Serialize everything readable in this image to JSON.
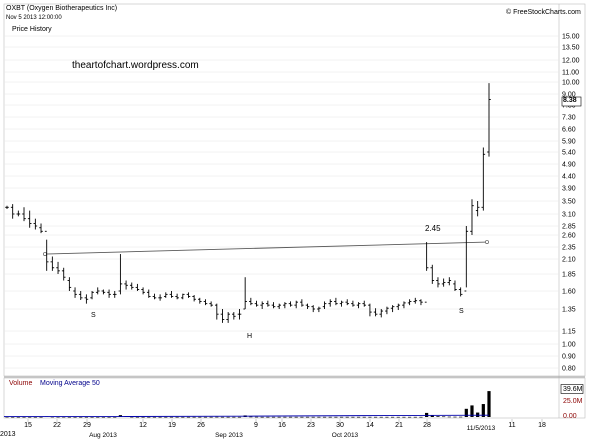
{
  "header": {
    "symbol_title": "OXBT (Oxygen Biotherapeutics Inc)",
    "date": "Nov 5 2013 12:00:00",
    "panel_label": "Price History",
    "watermark": "theartofchart.wordpress.com",
    "brand": "© FreeStockCharts.com"
  },
  "colors": {
    "price_bars": "#000000",
    "trendline": "#5a5a5a",
    "volume_label": "#8b0000",
    "ma_label": "#00008b",
    "volume_bars": "#000000",
    "ma_line": "#0000aa",
    "grid": "#e6e6e6"
  },
  "annotations": {
    "breakout_value": "2.45",
    "left_shoulder": "S",
    "head": "H",
    "right_shoulder": "S"
  },
  "chart_data": [
    {
      "type": "line",
      "title": "OXBT (Oxygen Biotherapeutics Inc)",
      "xlabel": "",
      "ylabel": "",
      "y_scale": "log",
      "ylim": [
        0.8,
        15.0
      ],
      "y_ticks": [
        15.0,
        13.5,
        12.0,
        11.0,
        10.0,
        9.0,
        7.8,
        7.3,
        6.6,
        5.9,
        5.4,
        4.9,
        4.4,
        3.9,
        3.5,
        3.1,
        2.85,
        2.6,
        2.35,
        2.1,
        1.85,
        1.6,
        1.35,
        1.15,
        1.0,
        0.9,
        0.8
      ],
      "x_tick_labels": [
        "15",
        "22",
        "29",
        "Aug 2013",
        "12",
        "19",
        "26",
        "Sep 2013",
        "9",
        "16",
        "23",
        "30",
        "Oct 2013",
        "14",
        "21",
        "28",
        "11/5/2013",
        "11",
        "18"
      ],
      "x_partial_left_label": "2013",
      "last_price_label": "8.38",
      "series": [
        {
          "ohlc_bars": [
            [
              3.3,
              3.25,
              3.35,
              3.3
            ],
            [
              3.3,
              3.0,
              3.4,
              3.1
            ],
            [
              3.1,
              3.05,
              3.2,
              3.1
            ],
            [
              3.1,
              2.95,
              3.3,
              3.0
            ],
            [
              3.0,
              2.8,
              3.2,
              2.9
            ],
            [
              2.9,
              2.75,
              3.0,
              2.85
            ],
            [
              2.8,
              2.65,
              2.9,
              2.7
            ],
            [
              2.7,
              1.9,
              2.5,
              2.05
            ],
            [
              2.05,
              1.9,
              2.15,
              1.95
            ],
            [
              1.95,
              1.85,
              2.05,
              1.9
            ],
            [
              1.9,
              1.75,
              1.95,
              1.8
            ],
            [
              1.75,
              1.6,
              1.8,
              1.65
            ],
            [
              1.6,
              1.5,
              1.65,
              1.55
            ],
            [
              1.55,
              1.47,
              1.6,
              1.5
            ],
            [
              1.5,
              1.42,
              1.55,
              1.48
            ],
            [
              1.5,
              1.48,
              1.6,
              1.58
            ],
            [
              1.58,
              1.55,
              1.65,
              1.6
            ],
            [
              1.6,
              1.55,
              1.62,
              1.58
            ],
            [
              1.58,
              1.5,
              1.62,
              1.55
            ],
            [
              1.55,
              1.5,
              1.6,
              1.55
            ],
            [
              1.6,
              1.55,
              2.2,
              1.7
            ],
            [
              1.7,
              1.62,
              1.75,
              1.68
            ],
            [
              1.68,
              1.62,
              1.72,
              1.65
            ],
            [
              1.65,
              1.6,
              1.7,
              1.62
            ],
            [
              1.62,
              1.55,
              1.65,
              1.58
            ],
            [
              1.58,
              1.5,
              1.62,
              1.52
            ],
            [
              1.52,
              1.48,
              1.56,
              1.5
            ],
            [
              1.5,
              1.46,
              1.55,
              1.5
            ],
            [
              1.52,
              1.5,
              1.58,
              1.55
            ],
            [
              1.55,
              1.5,
              1.6,
              1.52
            ],
            [
              1.52,
              1.48,
              1.56,
              1.5
            ],
            [
              1.5,
              1.48,
              1.56,
              1.55
            ],
            [
              1.55,
              1.5,
              1.58,
              1.52
            ],
            [
              1.52,
              1.45,
              1.54,
              1.48
            ],
            [
              1.48,
              1.42,
              1.5,
              1.45
            ],
            [
              1.45,
              1.4,
              1.48,
              1.42
            ],
            [
              1.42,
              1.38,
              1.45,
              1.4
            ],
            [
              1.4,
              1.25,
              1.42,
              1.3
            ],
            [
              1.3,
              1.22,
              1.35,
              1.25
            ],
            [
              1.25,
              1.22,
              1.32,
              1.3
            ],
            [
              1.3,
              1.25,
              1.32,
              1.28
            ],
            [
              1.3,
              1.25,
              1.35,
              1.3
            ],
            [
              1.35,
              1.35,
              1.8,
              1.45
            ],
            [
              1.45,
              1.4,
              1.5,
              1.42
            ],
            [
              1.42,
              1.38,
              1.46,
              1.4
            ],
            [
              1.4,
              1.35,
              1.45,
              1.42
            ],
            [
              1.42,
              1.38,
              1.46,
              1.4
            ],
            [
              1.4,
              1.36,
              1.44,
              1.38
            ],
            [
              1.38,
              1.35,
              1.42,
              1.4
            ],
            [
              1.4,
              1.36,
              1.44,
              1.42
            ],
            [
              1.42,
              1.38,
              1.45,
              1.4
            ],
            [
              1.4,
              1.36,
              1.46,
              1.44
            ],
            [
              1.44,
              1.38,
              1.48,
              1.4
            ],
            [
              1.4,
              1.35,
              1.42,
              1.38
            ],
            [
              1.38,
              1.32,
              1.4,
              1.35
            ],
            [
              1.35,
              1.32,
              1.38,
              1.36
            ],
            [
              1.38,
              1.35,
              1.45,
              1.42
            ],
            [
              1.42,
              1.38,
              1.48,
              1.45
            ],
            [
              1.45,
              1.4,
              1.5,
              1.42
            ],
            [
              1.42,
              1.38,
              1.46,
              1.44
            ],
            [
              1.44,
              1.4,
              1.48,
              1.42
            ],
            [
              1.42,
              1.38,
              1.46,
              1.4
            ],
            [
              1.4,
              1.36,
              1.44,
              1.42
            ],
            [
              1.42,
              1.38,
              1.46,
              1.4
            ],
            [
              1.4,
              1.28,
              1.42,
              1.32
            ],
            [
              1.32,
              1.28,
              1.36,
              1.3
            ],
            [
              1.3,
              1.27,
              1.35,
              1.33
            ],
            [
              1.33,
              1.3,
              1.38,
              1.36
            ],
            [
              1.36,
              1.32,
              1.4,
              1.38
            ],
            [
              1.38,
              1.34,
              1.42,
              1.4
            ],
            [
              1.4,
              1.36,
              1.45,
              1.43
            ],
            [
              1.43,
              1.4,
              1.48,
              1.45
            ],
            [
              1.45,
              1.42,
              1.5,
              1.46
            ],
            [
              1.46,
              1.4,
              1.48,
              1.44
            ],
            [
              1.44,
              1.9,
              2.45,
              1.95
            ],
            [
              1.95,
              1.7,
              2.0,
              1.75
            ],
            [
              1.75,
              1.65,
              1.8,
              1.7
            ],
            [
              1.7,
              1.66,
              1.78,
              1.72
            ],
            [
              1.72,
              1.68,
              1.8,
              1.75
            ],
            [
              1.7,
              1.6,
              1.75,
              1.62
            ],
            [
              1.62,
              1.52,
              1.65,
              1.55
            ],
            [
              1.6,
              1.65,
              2.85,
              2.7
            ],
            [
              2.7,
              2.6,
              3.55,
              3.35
            ],
            [
              3.2,
              3.05,
              3.5,
              3.3
            ],
            [
              3.3,
              3.2,
              5.6,
              5.3
            ],
            [
              5.4,
              5.2,
              9.9,
              8.38
            ]
          ]
        },
        {
          "name": "trendline",
          "points": [
            [
              "start",
              2.2
            ],
            [
              "end",
              2.45
            ]
          ]
        }
      ]
    },
    {
      "type": "bar",
      "title": "",
      "legend": [
        "Volume",
        "Moving Average 50"
      ],
      "y_ticks": [
        "39.6M",
        "25.0M",
        "0.00"
      ],
      "ylim": [
        0,
        39.6
      ],
      "unit": "M",
      "values": [
        0.3,
        0.2,
        0.2,
        0.2,
        0.2,
        0.2,
        0.2,
        0.9,
        0.4,
        0.3,
        0.3,
        0.2,
        0.2,
        0.2,
        0.2,
        0.2,
        0.2,
        0.2,
        0.2,
        0.2,
        2.7,
        1.2,
        0.3,
        0.2,
        0.2,
        0.2,
        0.2,
        0.2,
        0.2,
        0.2,
        0.2,
        0.2,
        0.2,
        0.2,
        0.2,
        0.2,
        0.2,
        0.3,
        0.2,
        0.2,
        0.2,
        0.2,
        2.3,
        0.5,
        0.3,
        0.2,
        0.2,
        0.2,
        0.2,
        0.2,
        0.2,
        0.2,
        0.2,
        0.2,
        0.2,
        0.2,
        0.2,
        0.2,
        0.2,
        0.2,
        0.2,
        0.2,
        0.2,
        0.2,
        0.2,
        0.2,
        0.2,
        0.2,
        0.2,
        0.2,
        0.2,
        0.2,
        0.2,
        0.2,
        6.0,
        2.6,
        1.1,
        0.8,
        0.5,
        0.4,
        0.4,
        12.0,
        17.0,
        6.5,
        19.0,
        38.0
      ],
      "moving_average_50": [
        0.7,
        0.7,
        1.2,
        2.0,
        2.6
      ]
    }
  ]
}
